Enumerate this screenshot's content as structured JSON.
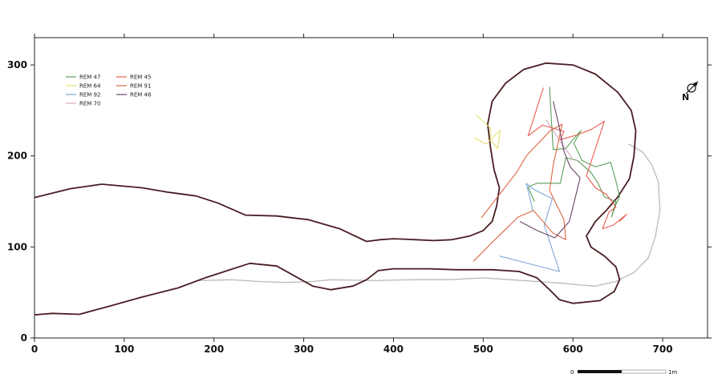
{
  "map": {
    "north_label": "N",
    "scale_bar": {
      "start_label": "0",
      "end_label": "1m"
    }
  },
  "chart_data": {
    "type": "line",
    "xlim": [
      0,
      750
    ],
    "ylim": [
      0,
      330
    ],
    "x_ticks": [
      0,
      100,
      200,
      300,
      400,
      500,
      600,
      700
    ],
    "y_ticks": [
      0,
      100,
      200,
      300
    ],
    "grid": false,
    "legend_position": "top-left",
    "outline": {
      "color": "#4a1d22",
      "points": [
        [
          -5,
          153
        ],
        [
          40,
          164
        ],
        [
          75,
          169
        ],
        [
          120,
          165
        ],
        [
          150,
          160
        ],
        [
          180,
          156
        ],
        [
          205,
          148
        ],
        [
          235,
          135
        ],
        [
          270,
          134
        ],
        [
          305,
          130
        ],
        [
          340,
          120
        ],
        [
          370,
          106
        ],
        [
          385,
          108
        ],
        [
          400,
          109
        ],
        [
          425,
          108
        ],
        [
          445,
          107
        ],
        [
          465,
          108
        ],
        [
          485,
          112
        ],
        [
          500,
          118
        ],
        [
          510,
          128
        ],
        [
          515,
          145
        ],
        [
          518,
          165
        ],
        [
          512,
          185
        ],
        [
          508,
          210
        ],
        [
          505,
          235
        ],
        [
          510,
          260
        ],
        [
          525,
          280
        ],
        [
          545,
          295
        ],
        [
          570,
          302
        ],
        [
          600,
          300
        ],
        [
          625,
          290
        ],
        [
          650,
          270
        ],
        [
          665,
          250
        ],
        [
          670,
          228
        ],
        [
          668,
          200
        ],
        [
          663,
          175
        ],
        [
          650,
          155
        ],
        [
          637,
          140
        ],
        [
          625,
          128
        ],
        [
          615,
          112
        ],
        [
          620,
          100
        ],
        [
          635,
          90
        ],
        [
          648,
          78
        ],
        [
          652,
          64
        ],
        [
          646,
          51
        ],
        [
          630,
          41
        ],
        [
          600,
          38
        ],
        [
          585,
          42
        ],
        [
          575,
          52
        ],
        [
          560,
          66
        ],
        [
          540,
          73
        ],
        [
          510,
          75
        ],
        [
          470,
          75
        ],
        [
          440,
          76
        ],
        [
          400,
          76
        ],
        [
          383,
          74
        ],
        [
          370,
          64
        ],
        [
          355,
          57
        ],
        [
          330,
          53
        ],
        [
          310,
          57
        ],
        [
          290,
          68
        ],
        [
          270,
          79
        ],
        [
          240,
          82
        ],
        [
          215,
          74
        ],
        [
          190,
          66
        ],
        [
          160,
          55
        ],
        [
          120,
          45
        ],
        [
          80,
          34
        ],
        [
          50,
          26
        ],
        [
          20,
          27
        ],
        [
          -5,
          25
        ]
      ]
    },
    "secondary_outline": {
      "color": "#bbbbbb",
      "points": [
        [
          180,
          63
        ],
        [
          220,
          64
        ],
        [
          250,
          62
        ],
        [
          280,
          61
        ],
        [
          310,
          62
        ],
        [
          330,
          64
        ],
        [
          380,
          63
        ],
        [
          420,
          64
        ],
        [
          460,
          64
        ],
        [
          500,
          66
        ],
        [
          530,
          64
        ],
        [
          560,
          62
        ],
        [
          590,
          60
        ],
        [
          610,
          58
        ],
        [
          625,
          57
        ],
        [
          648,
          62
        ],
        [
          668,
          72
        ],
        [
          684,
          88
        ],
        [
          692,
          112
        ],
        [
          697,
          140
        ],
        [
          695,
          172
        ],
        [
          688,
          190
        ],
        [
          678,
          204
        ],
        [
          668,
          210
        ],
        [
          662,
          213
        ]
      ]
    },
    "series": [
      {
        "name": "REM 47",
        "color": "#5a9e5a",
        "points": [
          [
            574,
            276
          ],
          [
            576,
            238
          ],
          [
            578,
            207
          ],
          [
            592,
            208
          ],
          [
            600,
            218
          ],
          [
            609,
            228
          ],
          [
            601,
            214
          ],
          [
            610,
            195
          ],
          [
            625,
            188
          ],
          [
            642,
            193
          ],
          [
            648,
            172
          ],
          [
            652,
            155
          ],
          [
            648,
            147
          ],
          [
            643,
            133
          ],
          [
            648,
            150
          ],
          [
            635,
            155
          ],
          [
            628,
            170
          ],
          [
            620,
            182
          ],
          [
            605,
            195
          ],
          [
            592,
            198
          ],
          [
            586,
            170
          ],
          [
            576,
            170
          ],
          [
            560,
            170
          ],
          [
            550,
            166
          ],
          [
            557,
            150
          ]
        ]
      },
      {
        "name": "REM 64",
        "color": "#e6de6e",
        "points": [
          [
            492,
            245
          ],
          [
            508,
            231
          ],
          [
            508,
            218
          ],
          [
            516,
            208
          ],
          [
            519,
            228
          ],
          [
            503,
            213
          ],
          [
            490,
            220
          ]
        ]
      },
      {
        "name": "REM 92",
        "color": "#7da7d6",
        "points": [
          [
            518,
            90
          ],
          [
            585,
            73
          ],
          [
            568,
            124
          ],
          [
            577,
            153
          ],
          [
            555,
            164
          ],
          [
            548,
            170
          ],
          [
            553,
            150
          ],
          [
            555,
            140
          ]
        ]
      },
      {
        "name": "REM 70",
        "color": "#d8a6c2",
        "points": [
          [
            570,
            240
          ],
          [
            575,
            232
          ],
          [
            586,
            216
          ],
          [
            600,
            196
          ]
        ]
      },
      {
        "name": "REM 45",
        "color": "#e85c50",
        "points": [
          [
            567,
            275
          ],
          [
            550,
            222
          ],
          [
            566,
            234
          ],
          [
            590,
            227
          ],
          [
            586,
            218
          ],
          [
            604,
            223
          ],
          [
            620,
            229
          ],
          [
            635,
            238
          ],
          [
            615,
            178
          ],
          [
            625,
            165
          ],
          [
            637,
            158
          ],
          [
            648,
            144
          ],
          [
            640,
            138
          ],
          [
            633,
            120
          ],
          [
            645,
            124
          ],
          [
            660,
            136
          ],
          [
            652,
            128
          ]
        ]
      },
      {
        "name": "REM 91",
        "color": "#dd6644",
        "points": [
          [
            498,
            132
          ],
          [
            538,
            183
          ],
          [
            548,
            200
          ],
          [
            575,
            228
          ],
          [
            588,
            235
          ],
          [
            578,
            190
          ],
          [
            574,
            162
          ],
          [
            590,
            130
          ],
          [
            592,
            108
          ],
          [
            578,
            115
          ],
          [
            556,
            140
          ],
          [
            539,
            133
          ],
          [
            510,
            105
          ],
          [
            489,
            84
          ]
        ]
      },
      {
        "name": "REM 48",
        "color": "#6b4468",
        "points": [
          [
            578,
            260
          ],
          [
            584,
            235
          ],
          [
            590,
            205
          ],
          [
            597,
            188
          ],
          [
            608,
            176
          ],
          [
            604,
            160
          ],
          [
            596,
            128
          ],
          [
            580,
            110
          ],
          [
            560,
            118
          ],
          [
            541,
            128
          ]
        ]
      }
    ]
  }
}
